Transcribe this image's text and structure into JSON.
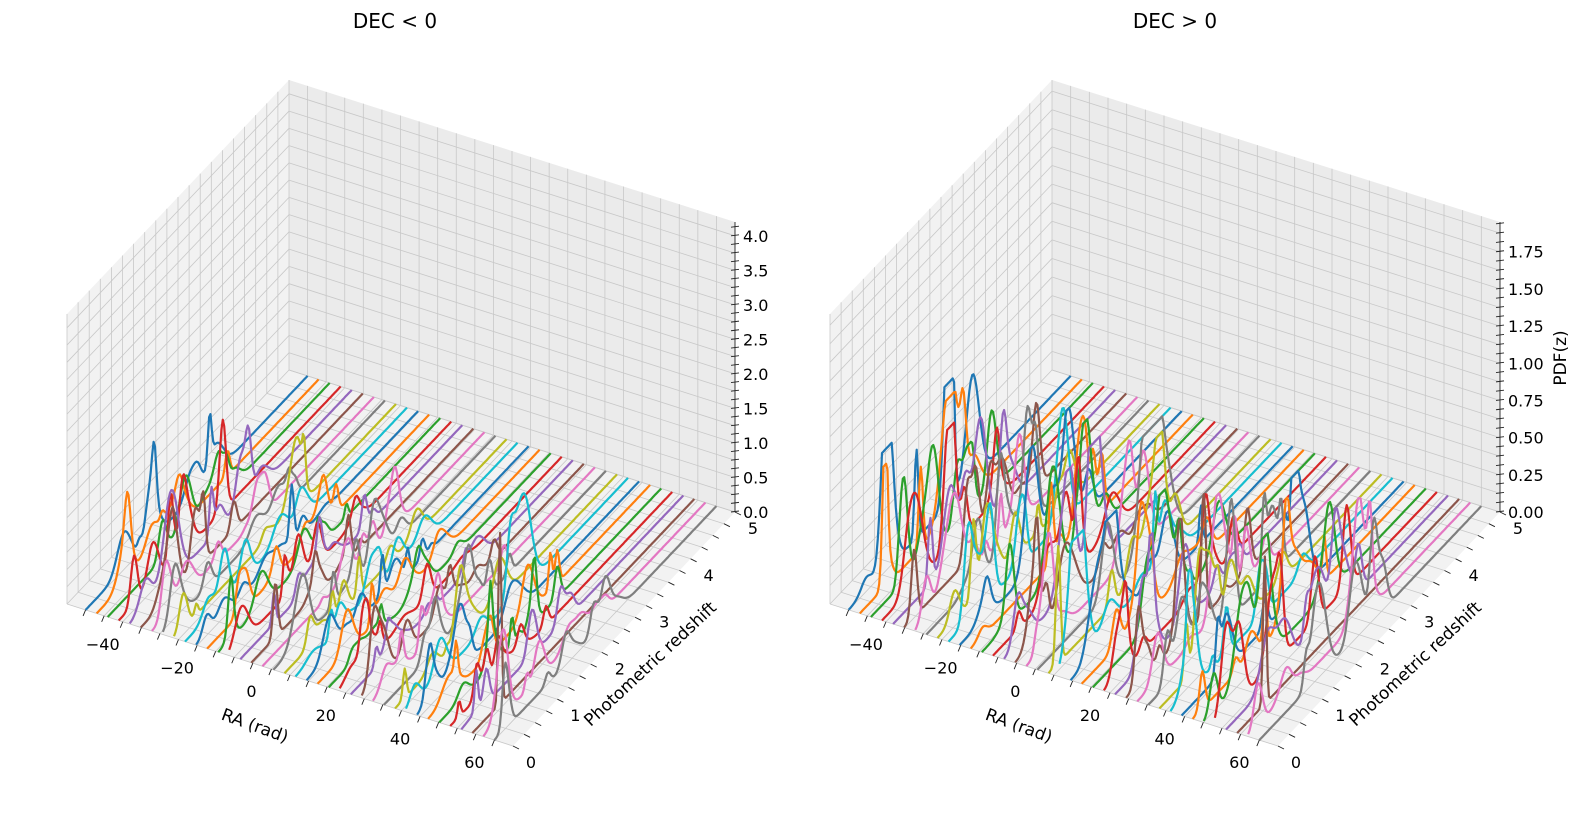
{
  "chart_data": [
    {
      "type": "line",
      "projection": "3d",
      "title": "DEC < 0",
      "xlabel": "RA (rad)",
      "ylabel": "Photometric redshift",
      "zlabel": "",
      "xticks": [
        "−40",
        "−20",
        "0",
        "20",
        "40",
        "60"
      ],
      "yticks": [
        "0",
        "1",
        "2",
        "3",
        "4",
        "5"
      ],
      "zticks": [
        "0.0",
        "0.5",
        "1.0",
        "1.5",
        "2.0",
        "2.5",
        "3.0",
        "3.5",
        "4.0"
      ],
      "xlim": [
        -55,
        65
      ],
      "ylim": [
        0,
        5
      ],
      "zlim": [
        0,
        4.2
      ],
      "grid": true,
      "series_count": 38,
      "series_ra_range": [
        -50,
        60
      ],
      "peak_series": {
        "ra": 53,
        "z": 0.62,
        "pdf": 2.5
      },
      "colors": [
        "#1f77b4",
        "#ff7f0e",
        "#2ca02c",
        "#d62728",
        "#9467bd",
        "#8c564b",
        "#e377c2",
        "#7f7f7f",
        "#bcbd22",
        "#17becf"
      ]
    },
    {
      "type": "line",
      "projection": "3d",
      "title": "DEC > 0",
      "xlabel": "RA (rad)",
      "ylabel": "Photometric redshift",
      "zlabel": "PDF(z)",
      "xticks": [
        "−40",
        "−20",
        "0",
        "20",
        "40",
        "60"
      ],
      "yticks": [
        "0",
        "1",
        "2",
        "3",
        "4",
        "5"
      ],
      "zticks": [
        "0.00",
        "0.25",
        "0.50",
        "0.75",
        "1.00",
        "1.25",
        "1.50",
        "1.75"
      ],
      "xlim": [
        -55,
        65
      ],
      "ylim": [
        0,
        5
      ],
      "zlim": [
        0,
        1.95
      ],
      "grid": true,
      "series_count": 38,
      "series_ra_range": [
        -50,
        60
      ],
      "peak_series": {
        "ra": 53,
        "z": 0.62,
        "pdf": 1.0
      },
      "colors": [
        "#1f77b4",
        "#ff7f0e",
        "#2ca02c",
        "#d62728",
        "#9467bd",
        "#8c564b",
        "#e377c2",
        "#7f7f7f",
        "#bcbd22",
        "#17becf"
      ]
    }
  ]
}
